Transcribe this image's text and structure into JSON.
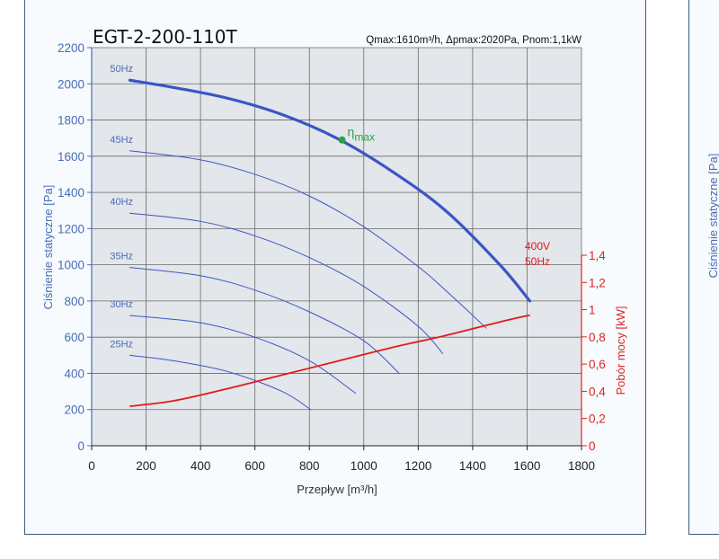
{
  "chart_data": {
    "type": "line",
    "title": "EGT-2-200-110T",
    "subtitle": "Qmax:1610m³/h, Δpmax:2020Pa, Pnom:1,1kW",
    "xlabel": "Przepływ [m³/h]",
    "ylabel": "Ciśnienie statyczne [Pa]",
    "y2label": "Pobór mocy [kW]",
    "xlim": [
      0,
      1800
    ],
    "ylim": [
      0,
      2200
    ],
    "y2lim": [
      0,
      1.4
    ],
    "xticks": [
      "0",
      "200",
      "400",
      "600",
      "800",
      "1000",
      "1200",
      "1400",
      "1600",
      "1800"
    ],
    "yticks": [
      "0",
      "200",
      "400",
      "600",
      "800",
      "1000",
      "1200",
      "1400",
      "1600",
      "1800",
      "2000",
      "2200"
    ],
    "y2ticks": [
      "0",
      "0,2",
      "0,4",
      "0,6",
      "0,8",
      "1",
      "1,2",
      "1,4"
    ],
    "grid": true,
    "series": [
      {
        "name": "50Hz",
        "color": "#3a55c6",
        "x": [
          140,
          300,
          500,
          700,
          900,
          1100,
          1300,
          1500,
          1610
        ],
        "values": [
          2020,
          1980,
          1920,
          1830,
          1700,
          1520,
          1300,
          1000,
          800
        ]
      },
      {
        "name": "45Hz",
        "color": "#3a55c6",
        "x": [
          140,
          400,
          600,
          800,
          1000,
          1200,
          1300,
          1450
        ],
        "values": [
          1630,
          1580,
          1500,
          1380,
          1210,
          990,
          860,
          650
        ]
      },
      {
        "name": "40Hz",
        "color": "#3a55c6",
        "x": [
          140,
          400,
          600,
          800,
          1000,
          1200,
          1290
        ],
        "values": [
          1285,
          1240,
          1160,
          1040,
          880,
          660,
          510
        ]
      },
      {
        "name": "35Hz",
        "color": "#3a55c6",
        "x": [
          140,
          400,
          600,
          800,
          1000,
          1130
        ],
        "values": [
          985,
          940,
          860,
          740,
          580,
          400
        ]
      },
      {
        "name": "30Hz",
        "color": "#3a55c6",
        "x": [
          140,
          400,
          600,
          800,
          970
        ],
        "values": [
          720,
          680,
          600,
          470,
          290
        ]
      },
      {
        "name": "25Hz",
        "color": "#3a55c6",
        "x": [
          140,
          300,
          500,
          700,
          805
        ],
        "values": [
          500,
          470,
          410,
          300,
          200
        ]
      }
    ],
    "power_series": {
      "name": "400V 50Hz",
      "color": "#e01a1a",
      "axis": "y2",
      "x": [
        140,
        300,
        500,
        700,
        900,
        1100,
        1300,
        1500,
        1610
      ],
      "values": [
        0.29,
        0.33,
        0.42,
        0.52,
        0.62,
        0.72,
        0.81,
        0.91,
        0.96
      ]
    },
    "annotations": [
      {
        "text": "η",
        "sub": "max",
        "x": 920,
        "y": 1690,
        "color": "#2aa149"
      }
    ],
    "power_label_lines": [
      "400V",
      "50Hz"
    ]
  },
  "colors": {
    "axis_blue": "#4a6bb8",
    "axis_red": "#e02222",
    "grid": "#6a6a6a",
    "plot_bg": "#e3e6ea",
    "eta": "#2aa149"
  }
}
